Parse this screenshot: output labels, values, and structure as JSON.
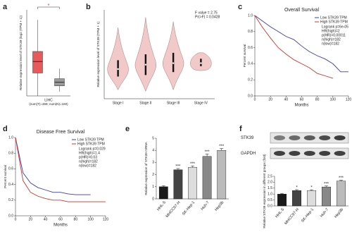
{
  "chart_data": [
    {
      "type": "box",
      "panel": "a",
      "ylabel": "Relative expression level of STK39 (log2 (TPM + 1))",
      "xlabel": "LIHC",
      "subtitle": "(num(T)=369; num(N)=160)",
      "significance": "*",
      "ylim": [
        0,
        6
      ],
      "boxes": [
        {
          "min": 0,
          "q1": 1.6,
          "median": 2.4,
          "q3": 3.1,
          "max": 5.3,
          "color": "#e8595a"
        },
        {
          "min": 0.3,
          "q1": 0.7,
          "median": 0.95,
          "q3": 1.2,
          "max": 1.9,
          "color": "#999999"
        }
      ]
    },
    {
      "type": "violin",
      "panel": "b",
      "ylabel": "Relative expression level of STK39 (TPM + 1)",
      "annotations": [
        "F value = 2.75",
        "Pr(>F) = 0.0428"
      ],
      "categories": [
        "Stage I",
        "Stage II",
        "Stage III",
        "Stage IV"
      ],
      "color": "#f2c9c9",
      "ylim": [
        0,
        6
      ],
      "boxes": [
        {
          "min": 0.6,
          "q1": 1.5,
          "median": 2.0,
          "q3": 2.6,
          "max": 4.8
        },
        {
          "min": 0.5,
          "q1": 1.6,
          "median": 2.3,
          "q3": 3.0,
          "max": 5.5
        },
        {
          "min": 0.6,
          "q1": 1.8,
          "median": 2.4,
          "q3": 3.1,
          "max": 5.2
        },
        {
          "min": 1.9,
          "q1": 2.2,
          "median": 2.4,
          "q3": 2.7,
          "max": 3.1
        }
      ]
    },
    {
      "type": "km",
      "panel": "c",
      "title": "Overall Survival",
      "xlabel": "Months",
      "ylabel": "Percent survival",
      "annotations": [
        "Logrank p=6e-05",
        "HR(high)=2",
        "p(HR)=0.00011",
        "n(high)=182",
        "n(low)=182"
      ],
      "x": [
        0,
        10,
        20,
        30,
        40,
        50,
        60,
        70,
        80,
        90,
        100,
        110,
        120
      ],
      "series": [
        {
          "name": "Low STK39 TPM",
          "color": "#3b3bb8",
          "values": [
            1,
            0.93,
            0.86,
            0.8,
            0.74,
            0.7,
            0.62,
            0.55,
            0.5,
            0.46,
            0.4,
            0.3,
            0.3
          ]
        },
        {
          "name": "High STK39 TPM",
          "color": "#d0342c",
          "values": [
            1,
            0.85,
            0.72,
            0.6,
            0.52,
            0.45,
            0.4,
            0.35,
            0.28,
            0.25,
            0.22,
            null,
            null
          ]
        }
      ],
      "xlim": [
        0,
        120
      ],
      "xticks": [
        0,
        20,
        40,
        60,
        80,
        100,
        120
      ],
      "ylim": [
        0,
        1
      ],
      "yticks": [
        {
          "value": 0,
          "label": "0.0"
        },
        0.2,
        0.4,
        0.6,
        0.8,
        {
          "value": 1,
          "label": "1.0"
        }
      ]
    },
    {
      "type": "km",
      "panel": "d",
      "title": "Disease Free Survival",
      "xlabel": "Months",
      "ylabel": "Percent survival",
      "annotations": [
        "Logrank p=0.029",
        "HR(high)=1.4",
        "p(HR)=0.03",
        "n(high)=182",
        "n(low)=182"
      ],
      "x": [
        0,
        10,
        20,
        30,
        40,
        50,
        60,
        70,
        80,
        90,
        100,
        110,
        120
      ],
      "series": [
        {
          "name": "Low STK39 TPM",
          "color": "#3b3bb8",
          "values": [
            1,
            0.55,
            0.42,
            0.36,
            0.33,
            0.3,
            0.3,
            0.28,
            0.27,
            0.27,
            0.27,
            null,
            null
          ]
        },
        {
          "name": "High STK39 TPM",
          "color": "#d0342c",
          "values": [
            1,
            0.45,
            0.3,
            0.25,
            0.22,
            0.2,
            0.2,
            0.18,
            0.18,
            0.18,
            0.18,
            0.18,
            0.18
          ]
        }
      ],
      "xlim": [
        0,
        120
      ],
      "xticks": [
        0,
        20,
        40,
        60,
        80,
        100,
        120
      ],
      "ylim": [
        0,
        1
      ],
      "yticks": [
        {
          "value": 0,
          "label": "0.0"
        },
        0.2,
        0.4,
        0.6,
        0.8,
        {
          "value": 1,
          "label": "1.0"
        }
      ]
    },
    {
      "type": "bar",
      "panel": "e",
      "ylabel": "Relative expression of STK39 mRNA",
      "categories": [
        "HHL-5",
        "MHCC97-H",
        "SK-Hep-1",
        "Huh-7",
        "Hep3b"
      ],
      "values": [
        1.0,
        2.4,
        2.6,
        3.5,
        4.0
      ],
      "errors": [
        0.08,
        0.1,
        0.12,
        0.2,
        0.15
      ],
      "significance": [
        null,
        "***",
        "***",
        "***",
        "***"
      ],
      "colors": [
        "#1a1a1a",
        "#444444",
        "#dddddd",
        "#888888",
        "#bbbbbb"
      ],
      "ylim": [
        0,
        5
      ],
      "yticks": [
        0,
        1,
        2,
        3,
        4,
        5
      ]
    },
    {
      "type": "bar",
      "panel": "f",
      "ylabel": "Relative STK39 expression in different groups (fold)",
      "blot_labels": [
        "STK39",
        "GAPDH"
      ],
      "categories": [
        "HHL-5",
        "MHCC97-H",
        "SK-Hep-1",
        "Huh-7",
        "Hep3b"
      ],
      "values": [
        1.0,
        1.3,
        1.3,
        1.6,
        2.1
      ],
      "errors": [
        0.06,
        0.07,
        0.06,
        0.08,
        0.07
      ],
      "significance": [
        null,
        "*",
        "*",
        "***",
        "***"
      ],
      "colors": [
        "#1a1a1a",
        "#444444",
        "#dddddd",
        "#888888",
        "#bbbbbb"
      ],
      "ylim": [
        0,
        2.5
      ],
      "yticks": [
        {
          "value": 0,
          "label": "0.0"
        },
        0.5,
        {
          "value": 1,
          "label": "1.0"
        },
        1.5,
        {
          "value": 2,
          "label": "2.0"
        },
        2.5
      ]
    }
  ]
}
